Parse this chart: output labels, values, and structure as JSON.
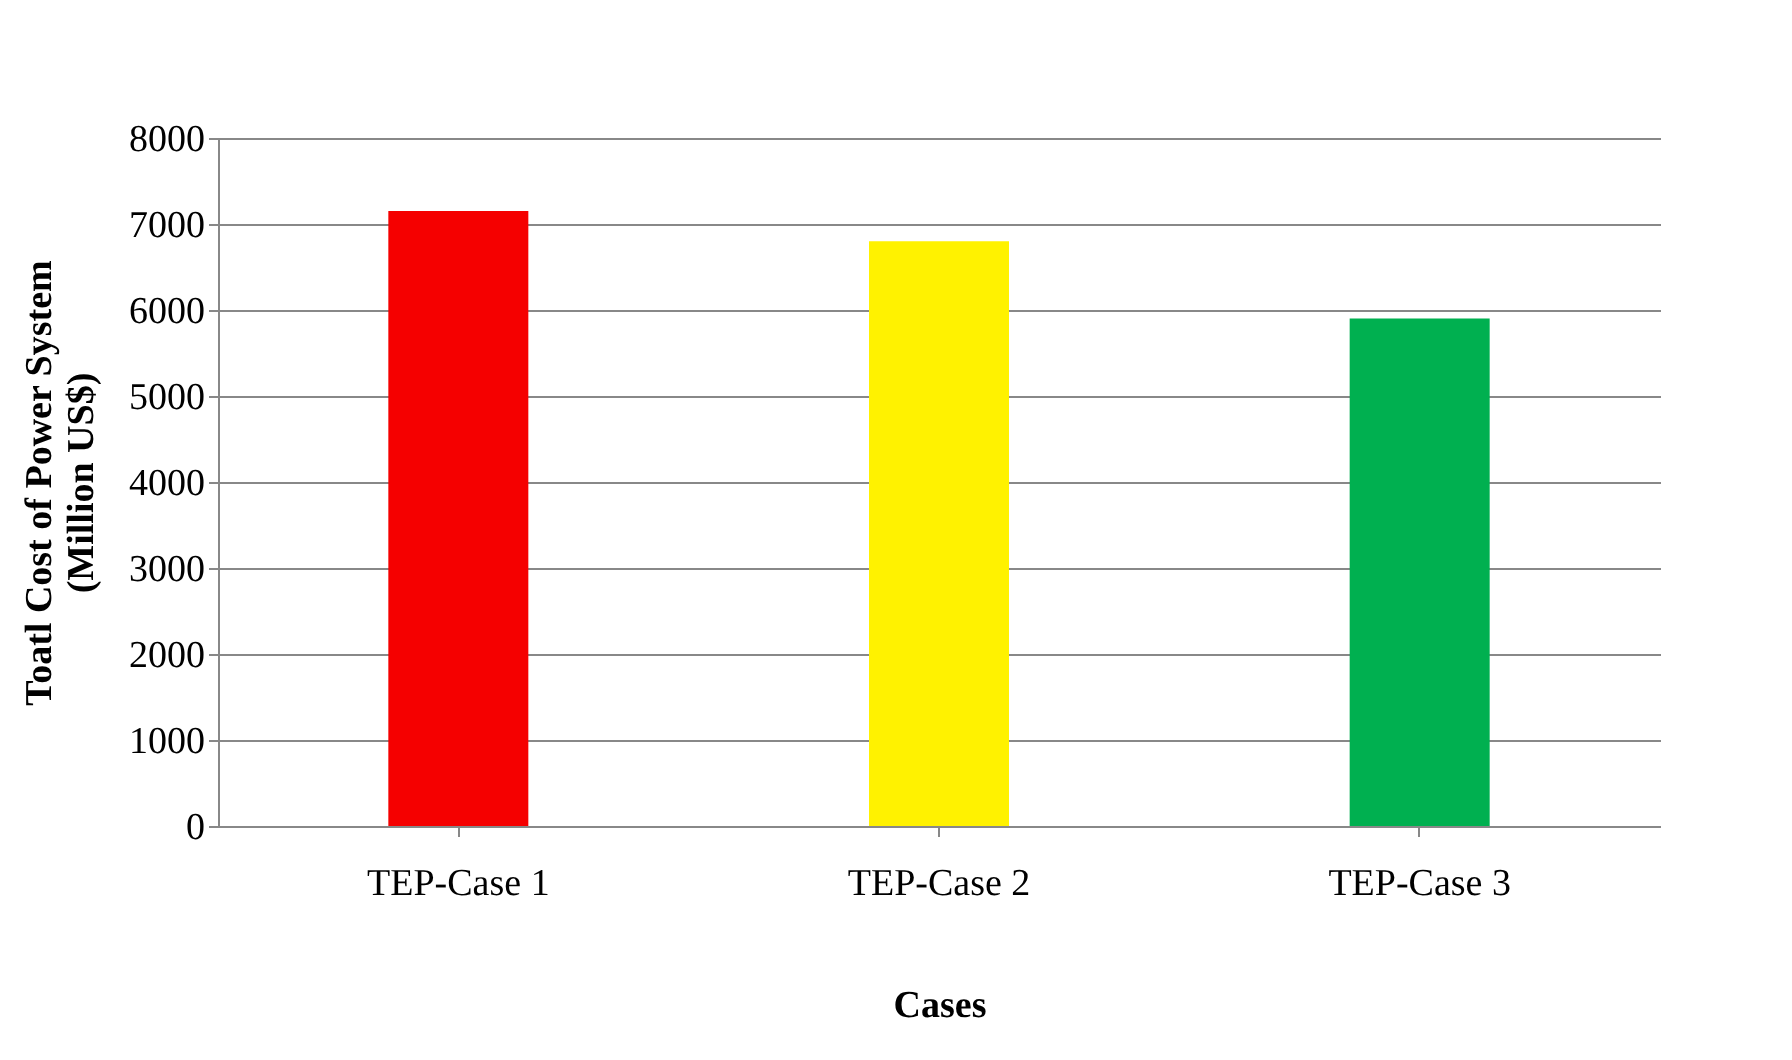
{
  "chart_data": {
    "type": "bar",
    "xlabel": "Cases",
    "ylabel": "Toatl Cost of Power System\n(Million US$)",
    "categories": [
      "TEP-Case 1",
      "TEP-Case 2",
      "TEP-Case 3"
    ],
    "values": [
      7150,
      6800,
      5900
    ],
    "colors": [
      "#f50000",
      "#fff200",
      "#00b050"
    ],
    "ylim": [
      0,
      8000
    ],
    "yticks": [
      0,
      1000,
      2000,
      3000,
      4000,
      5000,
      6000,
      7000,
      8000
    ],
    "grid": "y"
  }
}
